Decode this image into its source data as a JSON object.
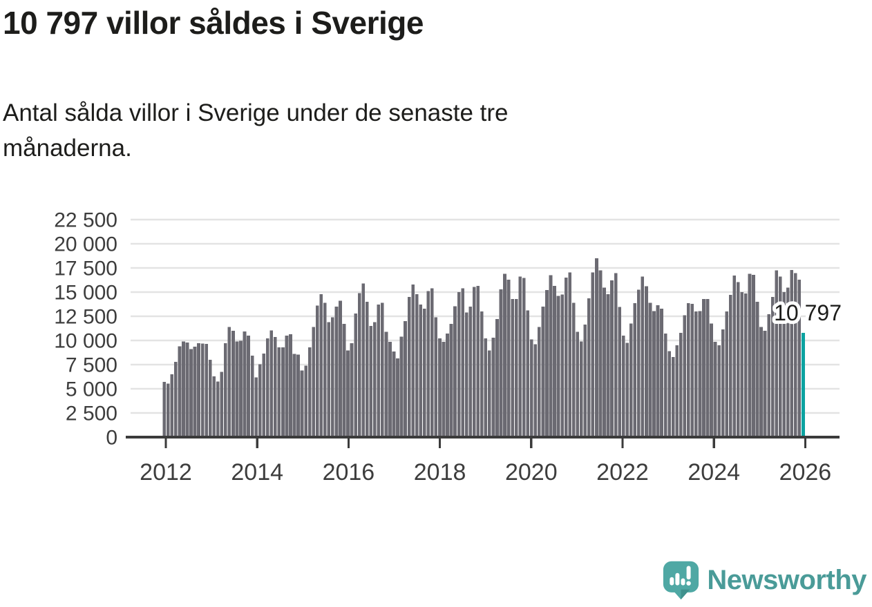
{
  "title": "10 797 villor såldes i Sverige",
  "subtitle": "Antal sålda villor i Sverige under de senaste tre månaderna.",
  "annotation": {
    "label": "10 797"
  },
  "logo": {
    "text": "Newsworthy"
  },
  "colors": {
    "title_text": "#1d1d1b",
    "axis_text": "#3d3d3d",
    "gridline": "#e3e3e3",
    "axis_line": "#3b3b3b",
    "bar": "#6b6a72",
    "highlight": "#0ba3a1",
    "callout_text": "#1d1d1b",
    "callout_halo": "#ffffff",
    "logo_bubble": "#4fa8a4",
    "logo_bubble_shade": "#3f918d",
    "logo_text": "#4a9b98"
  },
  "chart_data": {
    "type": "bar",
    "title": "10 797 villor såldes i Sverige",
    "subtitle": "Antal sålda villor i Sverige under de senaste tre månaderna.",
    "xlabel": "",
    "ylabel": "",
    "ylim": [
      0,
      22500
    ],
    "y_tick_step": 2500,
    "grid": true,
    "start_year": 2012,
    "frequency": "monthly",
    "y_ticks": [
      {
        "value": 0,
        "label": "0"
      },
      {
        "value": 2500,
        "label": "2 500"
      },
      {
        "value": 5000,
        "label": "5 000"
      },
      {
        "value": 7500,
        "label": "7 500"
      },
      {
        "value": 10000,
        "label": "10 000"
      },
      {
        "value": 12500,
        "label": "12 500"
      },
      {
        "value": 15000,
        "label": "15 000"
      },
      {
        "value": 17500,
        "label": "17 500"
      },
      {
        "value": 20000,
        "label": "20 000"
      },
      {
        "value": 22500,
        "label": "22 500"
      }
    ],
    "x_ticks": [
      {
        "year": 2012,
        "label": "2012"
      },
      {
        "year": 2014,
        "label": "2014"
      },
      {
        "year": 2016,
        "label": "2016"
      },
      {
        "year": 2018,
        "label": "2018"
      },
      {
        "year": 2020,
        "label": "2020"
      },
      {
        "year": 2022,
        "label": "2022"
      },
      {
        "year": 2024,
        "label": "2024"
      },
      {
        "year": 2026,
        "label": "2026"
      }
    ],
    "highlight_last": true,
    "highlight_value": 10797,
    "highlight_label": "10 797",
    "series": [
      {
        "name": "Antal sålda villor (senaste tre månaderna)",
        "values": [
          5700,
          5550,
          6500,
          7800,
          9400,
          9900,
          9800,
          9100,
          9350,
          9700,
          9690,
          9640,
          8000,
          6300,
          5750,
          6750,
          9700,
          11400,
          11000,
          9900,
          9950,
          10930,
          10500,
          8430,
          6170,
          7550,
          8650,
          10200,
          11050,
          10350,
          9300,
          9300,
          10500,
          10650,
          8600,
          8550,
          6900,
          7400,
          9300,
          11400,
          13600,
          14800,
          13900,
          11900,
          12400,
          13500,
          14100,
          11700,
          8950,
          9700,
          12800,
          14900,
          15900,
          14000,
          11500,
          11900,
          13700,
          13900,
          10900,
          9850,
          8850,
          8150,
          10400,
          12000,
          14500,
          15800,
          14800,
          13700,
          13300,
          15100,
          15400,
          12400,
          10200,
          9850,
          10700,
          11700,
          13550,
          15000,
          15400,
          12900,
          13500,
          15550,
          15650,
          13000,
          10200,
          8950,
          10300,
          12200,
          15300,
          16900,
          16300,
          14300,
          14300,
          16600,
          16450,
          13100,
          10100,
          9600,
          11400,
          13500,
          15200,
          16750,
          15650,
          14600,
          14750,
          16500,
          17050,
          13900,
          10900,
          9900,
          11650,
          14350,
          17050,
          18500,
          17250,
          15450,
          14800,
          16200,
          16950,
          13450,
          10500,
          9750,
          11750,
          13850,
          15250,
          16600,
          15600,
          13900,
          13050,
          13650,
          13300,
          10700,
          8900,
          8300,
          9500,
          10800,
          12600,
          13850,
          13800,
          13000,
          13050,
          14300,
          14300,
          11750,
          9850,
          9500,
          11150,
          13000,
          14700,
          16700,
          16050,
          15000,
          14850,
          16900,
          16800,
          14000,
          11400,
          11000,
          12700,
          14500,
          17250,
          16600,
          15000,
          15450,
          17300,
          16950,
          16300,
          10797
        ]
      }
    ]
  }
}
